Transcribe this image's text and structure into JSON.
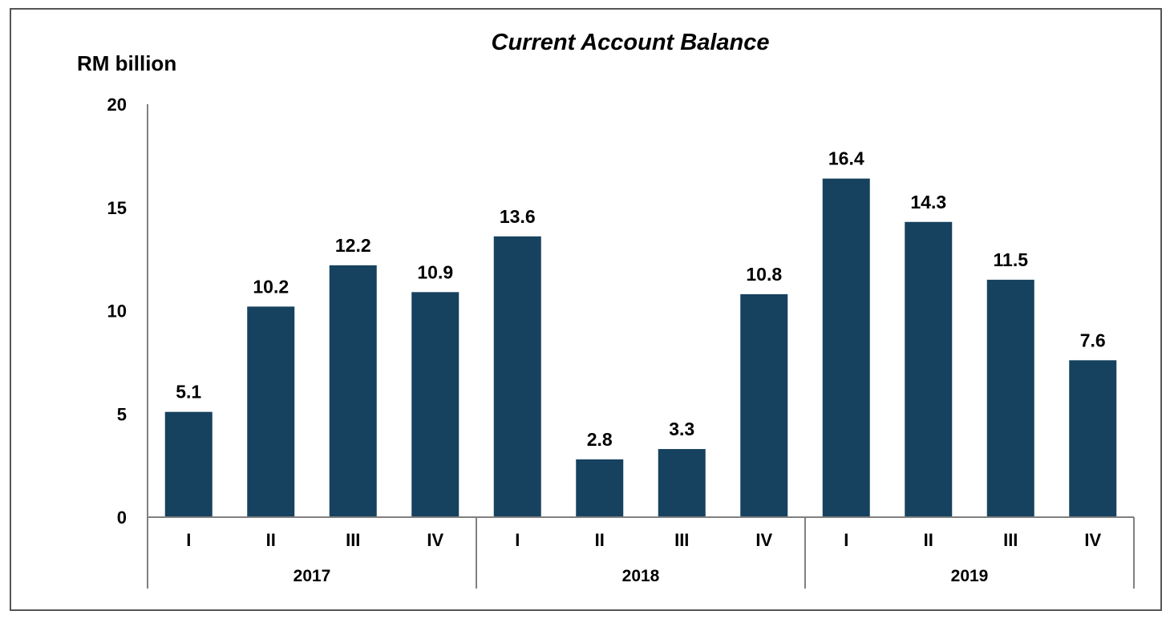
{
  "chart_data": {
    "type": "bar",
    "title": "Current Account Balance",
    "ylabel": "RM billion",
    "xlabel": "",
    "ylim": [
      0,
      20
    ],
    "yticks": [
      0,
      5,
      10,
      15,
      20
    ],
    "grid": false,
    "bar_color": "#16425f",
    "categories": [
      "I",
      "II",
      "III",
      "IV",
      "I",
      "II",
      "III",
      "IV",
      "I",
      "II",
      "III",
      "IV"
    ],
    "groups": [
      {
        "label": "2017",
        "count": 4
      },
      {
        "label": "2018",
        "count": 4
      },
      {
        "label": "2019",
        "count": 4
      }
    ],
    "values": [
      5.1,
      10.2,
      12.2,
      10.9,
      13.6,
      2.8,
      3.3,
      10.8,
      16.4,
      14.3,
      11.5,
      7.6
    ],
    "data_labels": [
      "5.1",
      "10.2",
      "12.2",
      "10.9",
      "13.6",
      "2.8",
      "3.3",
      "10.8",
      "16.4",
      "14.3",
      "11.5",
      "7.6"
    ]
  }
}
